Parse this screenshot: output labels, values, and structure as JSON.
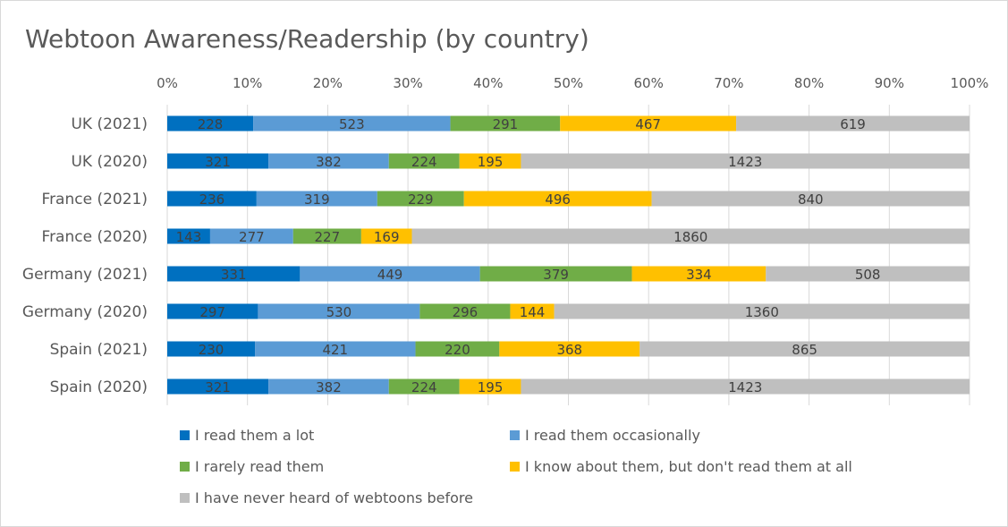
{
  "chart_data": {
    "type": "bar",
    "orientation": "horizontal",
    "stacking": "percent",
    "title": "Webtoon Awareness/Readership (by country)",
    "x_ticks": [
      "0%",
      "10%",
      "20%",
      "30%",
      "40%",
      "50%",
      "60%",
      "70%",
      "80%",
      "90%",
      "100%"
    ],
    "xlim": [
      0,
      100
    ],
    "grid": true,
    "legend_position": "bottom",
    "categories": [
      "UK (2021)",
      "UK (2020)",
      "France (2021)",
      "France (2020)",
      "Germany (2021)",
      "Germany (2020)",
      "Spain (2021)",
      "Spain (2020)"
    ],
    "series": [
      {
        "name": "I read them a lot",
        "color": "#0070c0",
        "values": [
          228,
          321,
          236,
          143,
          331,
          297,
          230,
          321
        ]
      },
      {
        "name": "I read them occasionally",
        "color": "#5b9bd5",
        "values": [
          523,
          382,
          319,
          277,
          449,
          530,
          421,
          382
        ]
      },
      {
        "name": "I rarely read them",
        "color": "#70ad47",
        "values": [
          291,
          224,
          229,
          227,
          379,
          296,
          220,
          224
        ]
      },
      {
        "name": "I know about them, but don't read them at all",
        "color": "#ffc000",
        "values": [
          467,
          195,
          496,
          169,
          334,
          144,
          368,
          195
        ]
      },
      {
        "name": "I have never heard of webtoons before",
        "color": "#bfbfbf",
        "values": [
          619,
          1423,
          840,
          1860,
          508,
          1360,
          865,
          1423
        ]
      }
    ]
  }
}
